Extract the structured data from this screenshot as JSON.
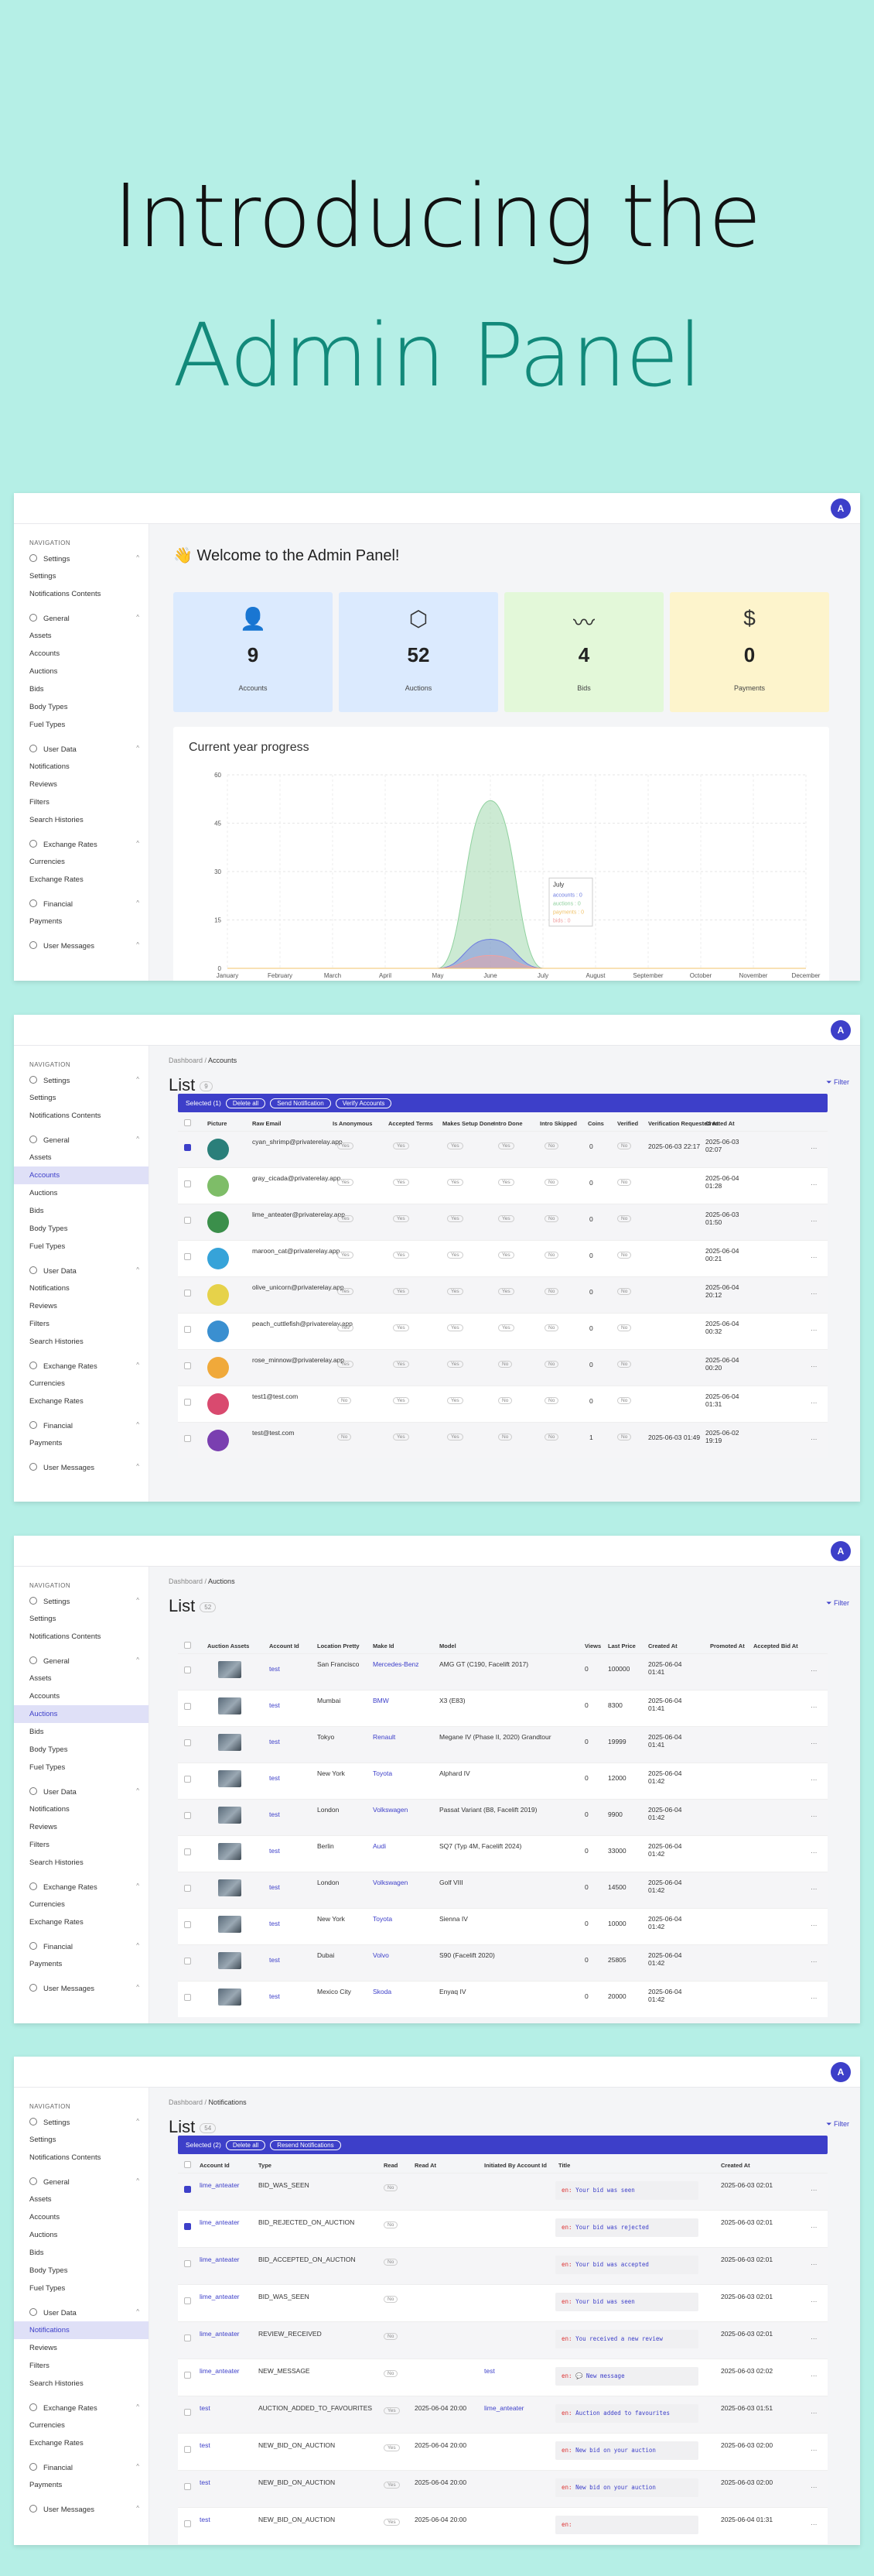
{
  "hero": {
    "line1": "Introducing the",
    "line2": "Admin Panel"
  },
  "avatar_letter": "A",
  "sidebar": {
    "heading": "NAVIGATION",
    "settings": "Settings",
    "settings_item": "Settings",
    "notif_contents": "Notifications Contents",
    "general": "General",
    "assets": "Assets",
    "accounts": "Accounts",
    "auctions": "Auctions",
    "bids": "Bids",
    "body_types": "Body Types",
    "fuel_types": "Fuel Types",
    "user_data": "User Data",
    "notifications": "Notifications",
    "reviews": "Reviews",
    "filters": "Filters",
    "search_histories": "Search Histories",
    "exchange_rates": "Exchange Rates",
    "currencies": "Currencies",
    "exchange_rates_item": "Exchange Rates",
    "financial": "Financial",
    "payments": "Payments",
    "user_messages": "User Messages"
  },
  "dashboard": {
    "welcome": "👋 Welcome to the Admin Panel!",
    "stats": [
      {
        "icon": "user-icon",
        "glyph": "👤",
        "value": "9",
        "label": "Accounts",
        "bg": "#dbeafe"
      },
      {
        "icon": "cube-icon",
        "glyph": "⬡",
        "value": "52",
        "label": "Auctions",
        "bg": "#dbeafe"
      },
      {
        "icon": "activity-icon",
        "glyph": "〰",
        "value": "4",
        "label": "Bids",
        "bg": "#e3f8d9"
      },
      {
        "icon": "dollar-icon",
        "glyph": "$",
        "value": "0",
        "label": "Payments",
        "bg": "#fdf4cc"
      }
    ],
    "progress_title": "Current year progress",
    "tooltip": {
      "month": "July",
      "lines": [
        "accounts : 0",
        "auctions : 0",
        "payments : 0",
        "bids : 0"
      ]
    },
    "legend": [
      "accounts",
      "auctions",
      "payments",
      "bids"
    ]
  },
  "chart_data": {
    "type": "area",
    "title": "Current year progress",
    "categories": [
      "January",
      "February",
      "March",
      "April",
      "May",
      "June",
      "July",
      "August",
      "September",
      "October",
      "November",
      "December"
    ],
    "ylim": [
      0,
      60
    ],
    "yticks": [
      0,
      15,
      30,
      45,
      60
    ],
    "series": [
      {
        "name": "accounts",
        "values": [
          0,
          0,
          0,
          0,
          0,
          9,
          0,
          0,
          0,
          0,
          0,
          0
        ],
        "color": "#6c7be0"
      },
      {
        "name": "auctions",
        "values": [
          0,
          0,
          0,
          0,
          0,
          52,
          0,
          0,
          0,
          0,
          0,
          0
        ],
        "color": "#8fd19e"
      },
      {
        "name": "payments",
        "values": [
          0,
          0,
          0,
          0,
          0,
          0,
          0,
          0,
          0,
          0,
          0,
          0
        ],
        "color": "#f0c36b"
      },
      {
        "name": "bids",
        "values": [
          0,
          0,
          0,
          0,
          0,
          4,
          0,
          0,
          0,
          0,
          0,
          0
        ],
        "color": "#f0a0a0"
      }
    ],
    "legend": "bottom",
    "grid": true
  },
  "accounts": {
    "crumb1": "Dashboard",
    "crumb2": "Accounts",
    "title": "List",
    "count": "9",
    "filter": "Filter",
    "selected": "Selected (1)",
    "actions": [
      "Delete all",
      "Send Notification",
      "Verify Accounts"
    ],
    "columns": [
      "Picture",
      "Raw Email",
      "Is Anonymous",
      "Accepted Terms",
      "Makes Setup Done",
      "Intro Done",
      "Intro Skipped",
      "Coins",
      "Verified",
      "Verification Requested At",
      "Created At"
    ],
    "rows": [
      {
        "email": "cyan_shrimp@privaterelay.app",
        "tags": [
          "Yes",
          "Yes",
          "Yes",
          "Yes",
          "No"
        ],
        "coins": "0",
        "ver": "No",
        "vreq": "2025-06-03 22:17",
        "created": "2025-06-03 02:07",
        "pic": "#2a7f7a",
        "on": true
      },
      {
        "email": "gray_cicada@privaterelay.app",
        "tags": [
          "Yes",
          "Yes",
          "Yes",
          "Yes",
          "No"
        ],
        "coins": "0",
        "ver": "No",
        "vreq": "",
        "created": "2025-06-04 01:28",
        "pic": "#7ebd68",
        "on": false
      },
      {
        "email": "lime_anteater@privaterelay.app",
        "tags": [
          "Yes",
          "Yes",
          "Yes",
          "Yes",
          "No"
        ],
        "coins": "0",
        "ver": "No",
        "vreq": "",
        "created": "2025-06-03 01:50",
        "pic": "#3b8f4b",
        "on": false
      },
      {
        "email": "maroon_cat@privaterelay.app",
        "tags": [
          "Yes",
          "Yes",
          "Yes",
          "Yes",
          "No"
        ],
        "coins": "0",
        "ver": "No",
        "vreq": "",
        "created": "2025-06-04 00:21",
        "pic": "#36a3d9",
        "on": false
      },
      {
        "email": "olive_unicorn@privaterelay.app",
        "tags": [
          "Yes",
          "Yes",
          "Yes",
          "Yes",
          "No"
        ],
        "coins": "0",
        "ver": "No",
        "vreq": "",
        "created": "2025-06-04 20:12",
        "pic": "#e6d24a",
        "on": false
      },
      {
        "email": "peach_cuttlefish@privaterelay.app",
        "tags": [
          "Yes",
          "Yes",
          "Yes",
          "Yes",
          "No"
        ],
        "coins": "0",
        "ver": "No",
        "vreq": "",
        "created": "2025-06-04 00:32",
        "pic": "#3a8fd0",
        "on": false
      },
      {
        "email": "rose_minnow@privaterelay.app",
        "tags": [
          "Yes",
          "Yes",
          "Yes",
          "No",
          "No"
        ],
        "coins": "0",
        "ver": "No",
        "vreq": "",
        "created": "2025-06-04 00:20",
        "pic": "#f0a93a",
        "on": false
      },
      {
        "email": "test1@test.com",
        "tags": [
          "No",
          "Yes",
          "Yes",
          "No",
          "No"
        ],
        "coins": "0",
        "ver": "No",
        "vreq": "",
        "created": "2025-06-04 01:31",
        "pic": "#d94a6f",
        "on": false
      },
      {
        "email": "test@test.com",
        "tags": [
          "No",
          "Yes",
          "Yes",
          "No",
          "No"
        ],
        "coins": "1",
        "ver": "No",
        "vreq": "2025-06-03 01:49",
        "created": "2025-06-02 19:19",
        "pic": "#7a3fb0",
        "on": false
      }
    ]
  },
  "auctions": {
    "crumb1": "Dashboard",
    "crumb2": "Auctions",
    "title": "List",
    "count": "52",
    "filter": "Filter",
    "columns": [
      "Auction Assets",
      "Account Id",
      "Location Pretty",
      "Make Id",
      "Model",
      "Views",
      "Last Price",
      "Created At",
      "Promoted At",
      "Accepted Bid At"
    ],
    "rows": [
      {
        "acc": "test",
        "loc": "San Francisco",
        "make": "Mercedes-Benz",
        "model": "AMG GT (C190, Facelift 2017)",
        "views": "0",
        "price": "100000",
        "created": "2025-06-04 01:41"
      },
      {
        "acc": "test",
        "loc": "Mumbai",
        "make": "BMW",
        "model": "X3 (E83)",
        "views": "0",
        "price": "8300",
        "created": "2025-06-04 01:41"
      },
      {
        "acc": "test",
        "loc": "Tokyo",
        "make": "Renault",
        "model": "Megane IV (Phase II, 2020) Grandtour",
        "views": "0",
        "price": "19999",
        "created": "2025-06-04 01:41"
      },
      {
        "acc": "test",
        "loc": "New York",
        "make": "Toyota",
        "model": "Alphard IV",
        "views": "0",
        "price": "12000",
        "created": "2025-06-04 01:42"
      },
      {
        "acc": "test",
        "loc": "London",
        "make": "Volkswagen",
        "model": "Passat Variant (B8, Facelift 2019)",
        "views": "0",
        "price": "9900",
        "created": "2025-06-04 01:42"
      },
      {
        "acc": "test",
        "loc": "Berlin",
        "make": "Audi",
        "model": "SQ7 (Typ 4M, Facelift 2024)",
        "views": "0",
        "price": "33000",
        "created": "2025-06-04 01:42"
      },
      {
        "acc": "test",
        "loc": "London",
        "make": "Volkswagen",
        "model": "Golf VIII",
        "views": "0",
        "price": "14500",
        "created": "2025-06-04 01:42"
      },
      {
        "acc": "test",
        "loc": "New York",
        "make": "Toyota",
        "model": "Sienna IV",
        "views": "0",
        "price": "10000",
        "created": "2025-06-04 01:42"
      },
      {
        "acc": "test",
        "loc": "Dubai",
        "make": "Volvo",
        "model": "S90 (Facelift 2020)",
        "views": "0",
        "price": "25805",
        "created": "2025-06-04 01:42"
      },
      {
        "acc": "test",
        "loc": "Mexico City",
        "make": "Skoda",
        "model": "Enyaq IV",
        "views": "0",
        "price": "20000",
        "created": "2025-06-04 01:42"
      }
    ]
  },
  "notifications": {
    "crumb1": "Dashboard",
    "crumb2": "Notifications",
    "title": "List",
    "count": "54",
    "filter": "Filter",
    "selected": "Selected (2)",
    "actions": [
      "Delete all",
      "Resend Notifications"
    ],
    "columns": [
      "Account Id",
      "Type",
      "Read",
      "Read At",
      "Initiated By Account Id",
      "Title",
      "Created At"
    ],
    "rows": [
      {
        "acc": "lime_anteater",
        "type": "BID_WAS_SEEN",
        "read": "No",
        "readat": "",
        "init": "",
        "title": "Your bid was seen",
        "created": "2025-06-03 02:01",
        "on": true
      },
      {
        "acc": "lime_anteater",
        "type": "BID_REJECTED_ON_AUCTION",
        "read": "No",
        "readat": "",
        "init": "",
        "title": "Your bid was rejected",
        "created": "2025-06-03 02:01",
        "on": true
      },
      {
        "acc": "lime_anteater",
        "type": "BID_ACCEPTED_ON_AUCTION",
        "read": "No",
        "readat": "",
        "init": "",
        "title": "Your bid was accepted",
        "created": "2025-06-03 02:01",
        "on": false
      },
      {
        "acc": "lime_anteater",
        "type": "BID_WAS_SEEN",
        "read": "No",
        "readat": "",
        "init": "",
        "title": "Your bid was seen",
        "created": "2025-06-03 02:01",
        "on": false
      },
      {
        "acc": "lime_anteater",
        "type": "REVIEW_RECEIVED",
        "read": "No",
        "readat": "",
        "init": "",
        "title": "You received a new review",
        "created": "2025-06-03 02:01",
        "on": false
      },
      {
        "acc": "lime_anteater",
        "type": "NEW_MESSAGE",
        "read": "No",
        "readat": "",
        "init": "test",
        "title": "💬 New message",
        "created": "2025-06-03 02:02",
        "on": false
      },
      {
        "acc": "test",
        "type": "AUCTION_ADDED_TO_FAVOURITES",
        "read": "Yes",
        "readat": "2025-06-04 20:00",
        "init": "lime_anteater",
        "title": "Auction added to favourites",
        "created": "2025-06-03 01:51",
        "on": false
      },
      {
        "acc": "test",
        "type": "NEW_BID_ON_AUCTION",
        "read": "Yes",
        "readat": "2025-06-04 20:00",
        "init": "",
        "title": "New bid on your auction",
        "created": "2025-06-03 02:00",
        "on": false
      },
      {
        "acc": "test",
        "type": "NEW_BID_ON_AUCTION",
        "read": "Yes",
        "readat": "2025-06-04 20:00",
        "init": "",
        "title": "New bid on your auction",
        "created": "2025-06-03 02:00",
        "on": false
      },
      {
        "acc": "test",
        "type": "NEW_BID_ON_AUCTION",
        "read": "Yes",
        "readat": "2025-06-04 20:00",
        "init": "",
        "title": "",
        "created": "2025-06-04 01:31",
        "on": false
      }
    ]
  }
}
